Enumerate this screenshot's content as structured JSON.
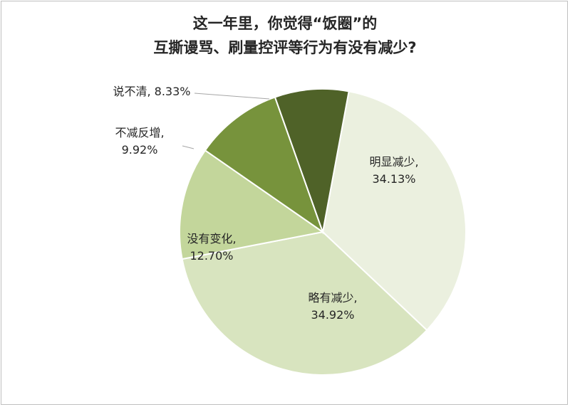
{
  "chart_data": {
    "type": "pie",
    "title_lines": [
      "这一年里，你觉得“饭圈”的",
      "互撕谩骂、刷量控评等行为有没有减少?"
    ],
    "slices": [
      {
        "name": "明显减少",
        "value": 34.13,
        "label": "34.13%",
        "color": "#ebf0df"
      },
      {
        "name": "略有减少",
        "value": 34.92,
        "label": "34.92%",
        "color": "#d8e4bf"
      },
      {
        "name": "没有变化",
        "value": 12.7,
        "label": "12.70%",
        "color": "#c3d69b"
      },
      {
        "name": "不减反增",
        "value": 9.92,
        "label": "9.92%",
        "color": "#77933c"
      },
      {
        "name": "说不清",
        "value": 8.33,
        "label": "8.33%",
        "color": "#4f6228"
      }
    ],
    "legend": "none"
  }
}
